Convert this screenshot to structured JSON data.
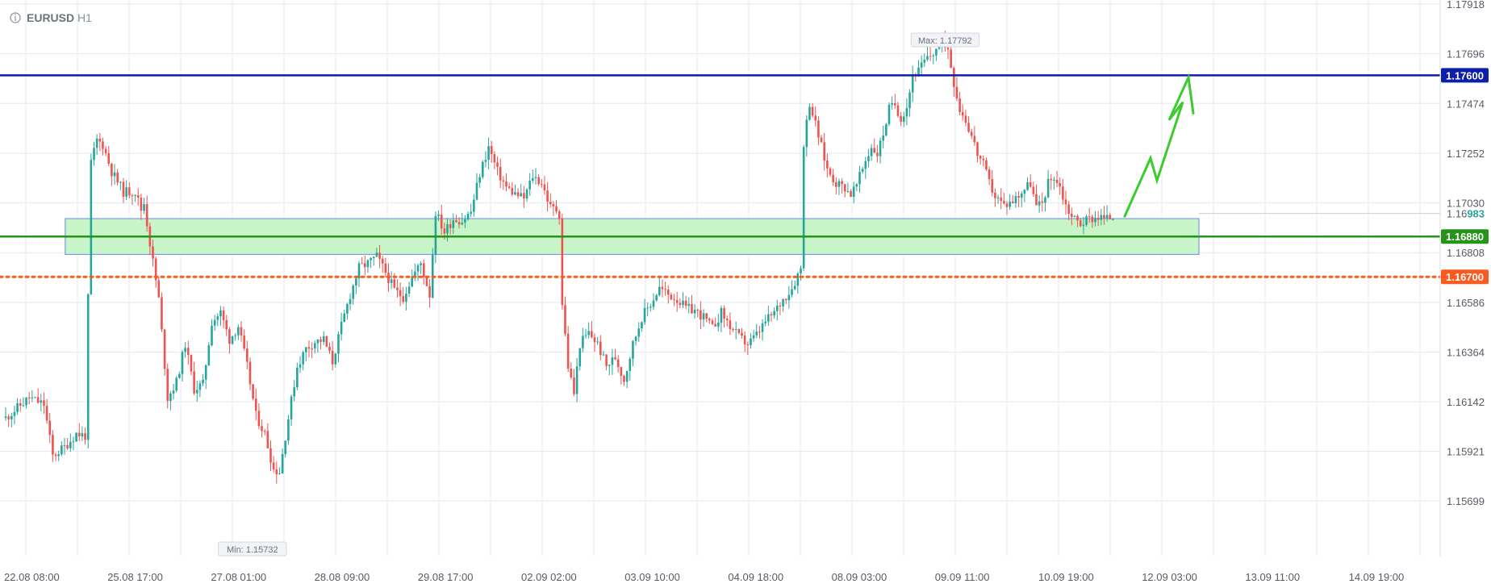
{
  "header": {
    "symbol": "EURUSD",
    "timeframe": "H1"
  },
  "colors": {
    "bull": "#26a69a",
    "bear": "#ef5350",
    "grid": "#e3e8f2",
    "resistance": "#0d1fa8",
    "support": "#27931b",
    "stop": "#fa5a1e",
    "zone_fill": "#c8f5c8",
    "zone_border": "#7a9be0",
    "arrow": "#3bcb2e"
  },
  "chart_data": {
    "type": "candlestick",
    "symbol": "EURUSD",
    "timeframe": "H1",
    "x_ticks": [
      "22.08 08:00",
      "25.08 17:00",
      "27.08 01:00",
      "28.08 09:00",
      "29.08 17:00",
      "02.09 02:00",
      "03.09 10:00",
      "04.09 18:00",
      "08.09 03:00",
      "09.09 11:00",
      "10.09 19:00",
      "12.09 03:00",
      "13.09 11:00",
      "14.09 19:00"
    ],
    "y_ticks": [
      "1.17918",
      "1.17696",
      "1.17474",
      "1.17252",
      "1.17030",
      "1.16808",
      "1.16586",
      "1.16364",
      "1.16142",
      "1.15921",
      "1.15699"
    ],
    "ylim": [
      1.1562,
      1.1797
    ],
    "current_price": "1.16983",
    "max_label": "Max: 1.17792",
    "min_label": "Min: 1.15732",
    "price_path": [
      [
        0,
        1.1607
      ],
      [
        8,
        1.1616
      ],
      [
        13,
        1.1613
      ],
      [
        16,
        1.159
      ],
      [
        20,
        1.1594
      ],
      [
        24,
        1.16
      ],
      [
        27,
        1.1599
      ],
      [
        29,
        1.1721
      ],
      [
        31,
        1.1731
      ],
      [
        33,
        1.1729
      ],
      [
        36,
        1.1717
      ],
      [
        40,
        1.1708
      ],
      [
        44,
        1.1708
      ],
      [
        46,
        1.17
      ],
      [
        47,
        1.1703
      ],
      [
        49,
        1.1685
      ],
      [
        52,
        1.166
      ],
      [
        55,
        1.1616
      ],
      [
        58,
        1.1623
      ],
      [
        61,
        1.164
      ],
      [
        64,
        1.162
      ],
      [
        67,
        1.1622
      ],
      [
        70,
        1.165
      ],
      [
        73,
        1.1654
      ],
      [
        76,
        1.1642
      ],
      [
        79,
        1.1648
      ],
      [
        82,
        1.163
      ],
      [
        85,
        1.1608
      ],
      [
        88,
        1.16
      ],
      [
        91,
        1.1584
      ],
      [
        93,
        1.1583
      ],
      [
        96,
        1.1607
      ],
      [
        99,
        1.163
      ],
      [
        102,
        1.1638
      ],
      [
        105,
        1.1641
      ],
      [
        108,
        1.1642
      ],
      [
        111,
        1.1632
      ],
      [
        114,
        1.1648
      ],
      [
        117,
        1.1662
      ],
      [
        120,
        1.1674
      ],
      [
        123,
        1.1676
      ],
      [
        126,
        1.1679
      ],
      [
        129,
        1.1672
      ],
      [
        132,
        1.1664
      ],
      [
        135,
        1.1661
      ],
      [
        138,
        1.167
      ],
      [
        141,
        1.1676
      ],
      [
        144,
        1.1662
      ],
      [
        146,
        1.1699
      ],
      [
        149,
        1.169
      ],
      [
        152,
        1.1696
      ],
      [
        155,
        1.1695
      ],
      [
        158,
        1.1699
      ],
      [
        161,
        1.1716
      ],
      [
        164,
        1.1728
      ],
      [
        167,
        1.1717
      ],
      [
        170,
        1.171
      ],
      [
        173,
        1.1707
      ],
      [
        176,
        1.1705
      ],
      [
        179,
        1.1715
      ],
      [
        182,
        1.1712
      ],
      [
        185,
        1.1701
      ],
      [
        187,
        1.17
      ],
      [
        188,
        1.1698
      ],
      [
        189,
        1.1658
      ],
      [
        191,
        1.163
      ],
      [
        193,
        1.1618
      ],
      [
        195,
        1.164
      ],
      [
        198,
        1.1645
      ],
      [
        201,
        1.164
      ],
      [
        204,
        1.163
      ],
      [
        207,
        1.1634
      ],
      [
        210,
        1.1624
      ],
      [
        213,
        1.164
      ],
      [
        216,
        1.1652
      ],
      [
        219,
        1.1658
      ],
      [
        222,
        1.1665
      ],
      [
        225,
        1.1662
      ],
      [
        228,
        1.166
      ],
      [
        231,
        1.1656
      ],
      [
        234,
        1.1655
      ],
      [
        237,
        1.1652
      ],
      [
        240,
        1.1647
      ],
      [
        243,
        1.1654
      ],
      [
        246,
        1.1648
      ],
      [
        249,
        1.1643
      ],
      [
        252,
        1.164
      ],
      [
        255,
        1.1644
      ],
      [
        258,
        1.165
      ],
      [
        261,
        1.1654
      ],
      [
        264,
        1.166
      ],
      [
        267,
        1.1665
      ],
      [
        270,
        1.1674
      ],
      [
        271,
        1.173
      ],
      [
        273,
        1.1748
      ],
      [
        275,
        1.1738
      ],
      [
        277,
        1.1728
      ],
      [
        279,
        1.1718
      ],
      [
        282,
        1.1712
      ],
      [
        285,
        1.171
      ],
      [
        287,
        1.1707
      ],
      [
        289,
        1.1711
      ],
      [
        292,
        1.1722
      ],
      [
        294,
        1.1728
      ],
      [
        296,
        1.1725
      ],
      [
        298,
        1.1734
      ],
      [
        300,
        1.1745
      ],
      [
        302,
        1.1747
      ],
      [
        304,
        1.1741
      ],
      [
        306,
        1.1746
      ],
      [
        308,
        1.176
      ],
      [
        310,
        1.1762
      ],
      [
        312,
        1.1766
      ],
      [
        315,
        1.177
      ],
      [
        318,
        1.1776
      ],
      [
        320,
        1.1772
      ],
      [
        322,
        1.1757
      ],
      [
        324,
        1.1745
      ],
      [
        326,
        1.174
      ],
      [
        328,
        1.1733
      ],
      [
        330,
        1.1725
      ],
      [
        332,
        1.172
      ],
      [
        334,
        1.1712
      ],
      [
        336,
        1.1706
      ],
      [
        339,
        1.1702
      ],
      [
        342,
        1.1704
      ],
      [
        345,
        1.1708
      ],
      [
        348,
        1.1712
      ],
      [
        350,
        1.1701
      ],
      [
        352,
        1.1703
      ],
      [
        354,
        1.1712
      ],
      [
        356,
        1.1715
      ],
      [
        358,
        1.171
      ],
      [
        360,
        1.1702
      ],
      [
        362,
        1.1697
      ],
      [
        365,
        1.1694
      ],
      [
        368,
        1.1696
      ],
      [
        371,
        1.1697
      ],
      [
        374,
        1.1696
      ],
      [
        376,
        1.1697
      ]
    ],
    "levels": [
      {
        "label": "1.17600",
        "price": 1.176,
        "style": "solid",
        "color": "#0d1fa8"
      },
      {
        "label": "1.16880",
        "price": 1.1688,
        "style": "solid",
        "color": "#27931b"
      },
      {
        "label": "1.16700",
        "price": 1.167,
        "style": "dotted",
        "color": "#fa5a1e"
      }
    ],
    "zone": {
      "top": 1.1696,
      "bottom": 1.168
    },
    "projection": [
      1.1697,
      1.1723,
      1.1713,
      1.1748,
      1.174,
      1.1759,
      1.1743
    ],
    "grid": true
  }
}
